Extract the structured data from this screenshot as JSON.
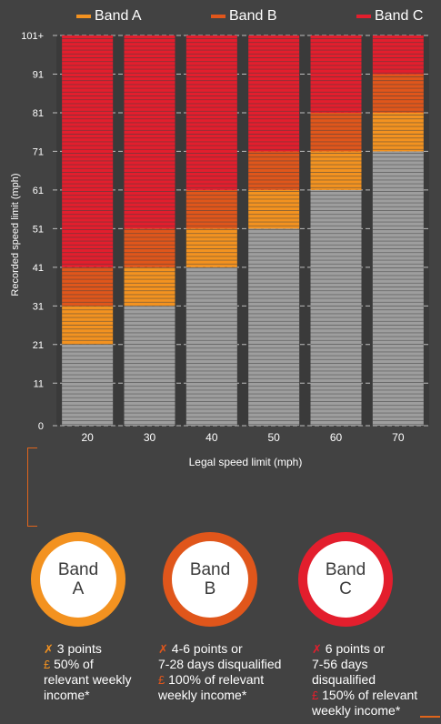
{
  "legend": [
    {
      "label": "Band A",
      "color": "#f39220"
    },
    {
      "label": "Band B",
      "color": "#e0561b"
    },
    {
      "label": "Band C",
      "color": "#e31e2d"
    }
  ],
  "chart_data": {
    "type": "bar",
    "stacked": true,
    "xlabel": "Legal speed limit (mph)",
    "ylabel": "Recorded speed limit (mph)",
    "categories": [
      "20",
      "30",
      "40",
      "50",
      "60",
      "70"
    ],
    "y_ticks": [
      "0",
      "11",
      "21",
      "31",
      "41",
      "51",
      "61",
      "71",
      "81",
      "91",
      "101+"
    ],
    "ylim": [
      0,
      101
    ],
    "grid": true,
    "series": [
      {
        "name": "",
        "color": "#9e9e9e",
        "ranges": [
          [
            0,
            21
          ],
          [
            0,
            31
          ],
          [
            0,
            41
          ],
          [
            0,
            51
          ],
          [
            0,
            61
          ],
          [
            0,
            71
          ]
        ]
      },
      {
        "name": "Band A",
        "color": "#f39220",
        "ranges": [
          [
            21,
            31
          ],
          [
            31,
            41
          ],
          [
            41,
            51
          ],
          [
            51,
            61
          ],
          [
            61,
            71
          ],
          [
            71,
            81
          ]
        ]
      },
      {
        "name": "Band B",
        "color": "#e0561b",
        "ranges": [
          [
            31,
            41
          ],
          [
            41,
            51
          ],
          [
            51,
            61
          ],
          [
            61,
            71
          ],
          [
            71,
            81
          ],
          [
            81,
            91
          ]
        ]
      },
      {
        "name": "Band C",
        "color": "#e31e2d",
        "ranges": [
          [
            41,
            101
          ],
          [
            51,
            101
          ],
          [
            61,
            101
          ],
          [
            71,
            101
          ],
          [
            81,
            101
          ],
          [
            91,
            101
          ]
        ]
      }
    ]
  },
  "bands": [
    {
      "title_line1": "Band",
      "title_line2": "A",
      "color": "#f39220",
      "line1": "3 points",
      "line2": "50% of",
      "line3": "relevant weekly",
      "line4": "income*",
      "line5": ""
    },
    {
      "title_line1": "Band",
      "title_line2": "B",
      "color": "#e0561b",
      "line1": "4-6 points or",
      "line2": "7-28 days disqualified",
      "line3": "100% of relevant",
      "line4": "weekly income*",
      "line5": ""
    },
    {
      "title_line1": "Band",
      "title_line2": "C",
      "color": "#e31e2d",
      "line1": "6 points or",
      "line2": "7-56 days",
      "line3": "disqualified",
      "line4": "150% of relevant",
      "line5": "weekly income*"
    }
  ],
  "icons": {
    "points": "✗",
    "fine": "£"
  }
}
